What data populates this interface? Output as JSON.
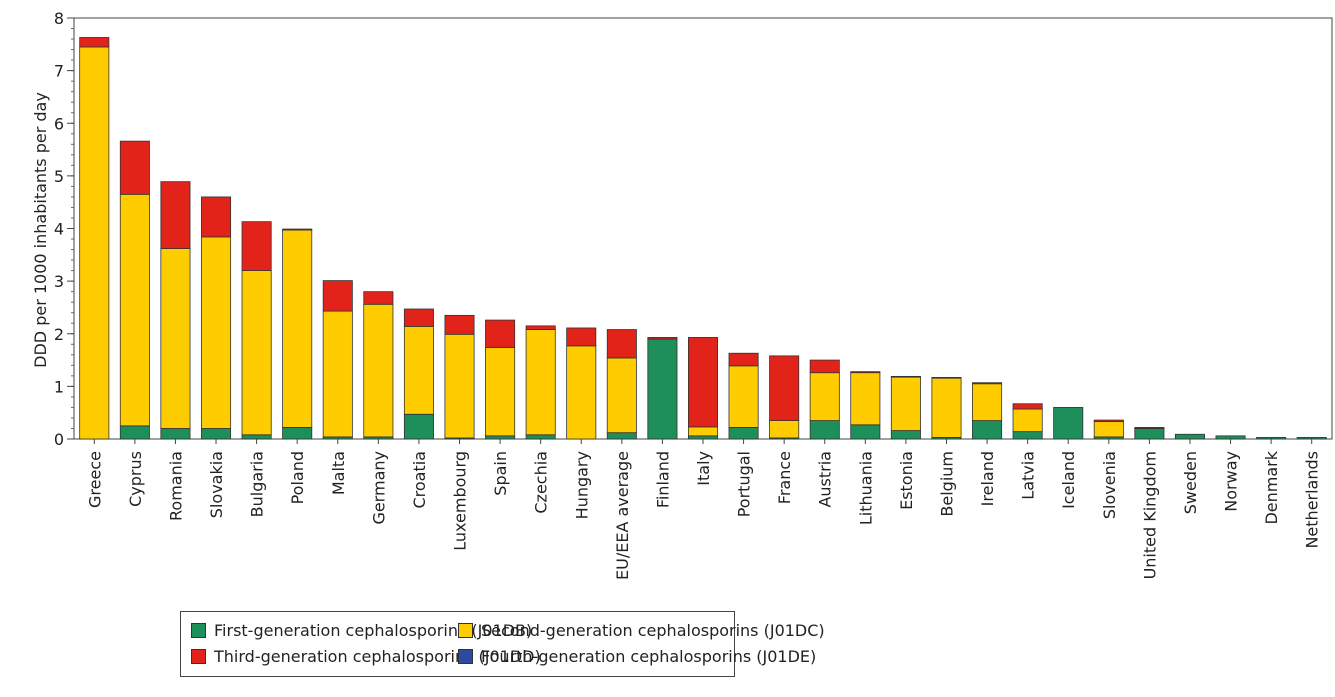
{
  "chart_data": {
    "type": "bar",
    "stacked": true,
    "title": "",
    "xlabel": "",
    "ylabel": "DDD per 1000 inhabitants per day",
    "ylim": [
      0,
      8
    ],
    "yticks": [
      "0",
      "1",
      "2",
      "3",
      "4",
      "5",
      "6",
      "7",
      "8"
    ],
    "categories": [
      "Greece",
      "Cyprus",
      "Romania",
      "Slovakia",
      "Bulgaria",
      "Poland",
      "Malta",
      "Germany",
      "Croatia",
      "Luxembourg",
      "Spain",
      "Czechia",
      "Hungary",
      "EU/EEA average",
      "Finland",
      "Italy",
      "Portugal",
      "France",
      "Austria",
      "Lithuania",
      "Estonia",
      "Belgium",
      "Ireland",
      "Latvia",
      "Iceland",
      "Slovenia",
      "United Kingdom",
      "Sweden",
      "Norway",
      "Denmark",
      "Netherlands"
    ],
    "series": [
      {
        "name": "First-generation cephalosporins (J01DB)",
        "color": "#1e8f5a",
        "values": [
          0.0,
          0.25,
          0.2,
          0.2,
          0.08,
          0.22,
          0.04,
          0.04,
          0.47,
          0.02,
          0.06,
          0.08,
          0.0,
          0.12,
          1.9,
          0.06,
          0.22,
          0.02,
          0.35,
          0.27,
          0.16,
          0.03,
          0.35,
          0.14,
          0.6,
          0.04,
          0.2,
          0.09,
          0.06,
          0.03,
          0.03
        ]
      },
      {
        "name": "Second-generation cephalosporins (J01DC)",
        "color": "#ffcc00",
        "values": [
          7.45,
          4.4,
          3.42,
          3.64,
          3.12,
          3.75,
          2.39,
          2.52,
          1.67,
          1.97,
          1.68,
          2.0,
          1.77,
          1.42,
          0.0,
          0.17,
          1.17,
          0.33,
          0.91,
          0.99,
          1.02,
          1.13,
          0.7,
          0.43,
          0.0,
          0.29,
          0.0,
          0.0,
          0.0,
          0.0,
          0.0
        ]
      },
      {
        "name": "Third-generation cephalosporins (J01DD)",
        "color": "#e2231a",
        "values": [
          0.18,
          1.01,
          1.27,
          0.76,
          0.93,
          0.02,
          0.58,
          0.24,
          0.33,
          0.36,
          0.52,
          0.07,
          0.34,
          0.54,
          0.03,
          1.7,
          0.24,
          1.23,
          0.24,
          0.02,
          0.01,
          0.01,
          0.02,
          0.1,
          0.0,
          0.03,
          0.02,
          0.0,
          0.0,
          0.0,
          0.0
        ]
      },
      {
        "name": "Fourth-generation cephalosporins (J01DE)",
        "color": "#2e4aa0",
        "values": [
          0.0,
          0.0,
          0.0,
          0.0,
          0.0,
          0.0,
          0.0,
          0.0,
          0.0,
          0.0,
          0.0,
          0.0,
          0.0,
          0.0,
          0.0,
          0.0,
          0.0,
          0.0,
          0.0,
          0.0,
          0.0,
          0.0,
          0.0,
          0.0,
          0.0,
          0.0,
          0.0,
          0.0,
          0.0,
          0.0,
          0.0
        ]
      }
    ],
    "grid": false,
    "legend_position": "bottom"
  }
}
